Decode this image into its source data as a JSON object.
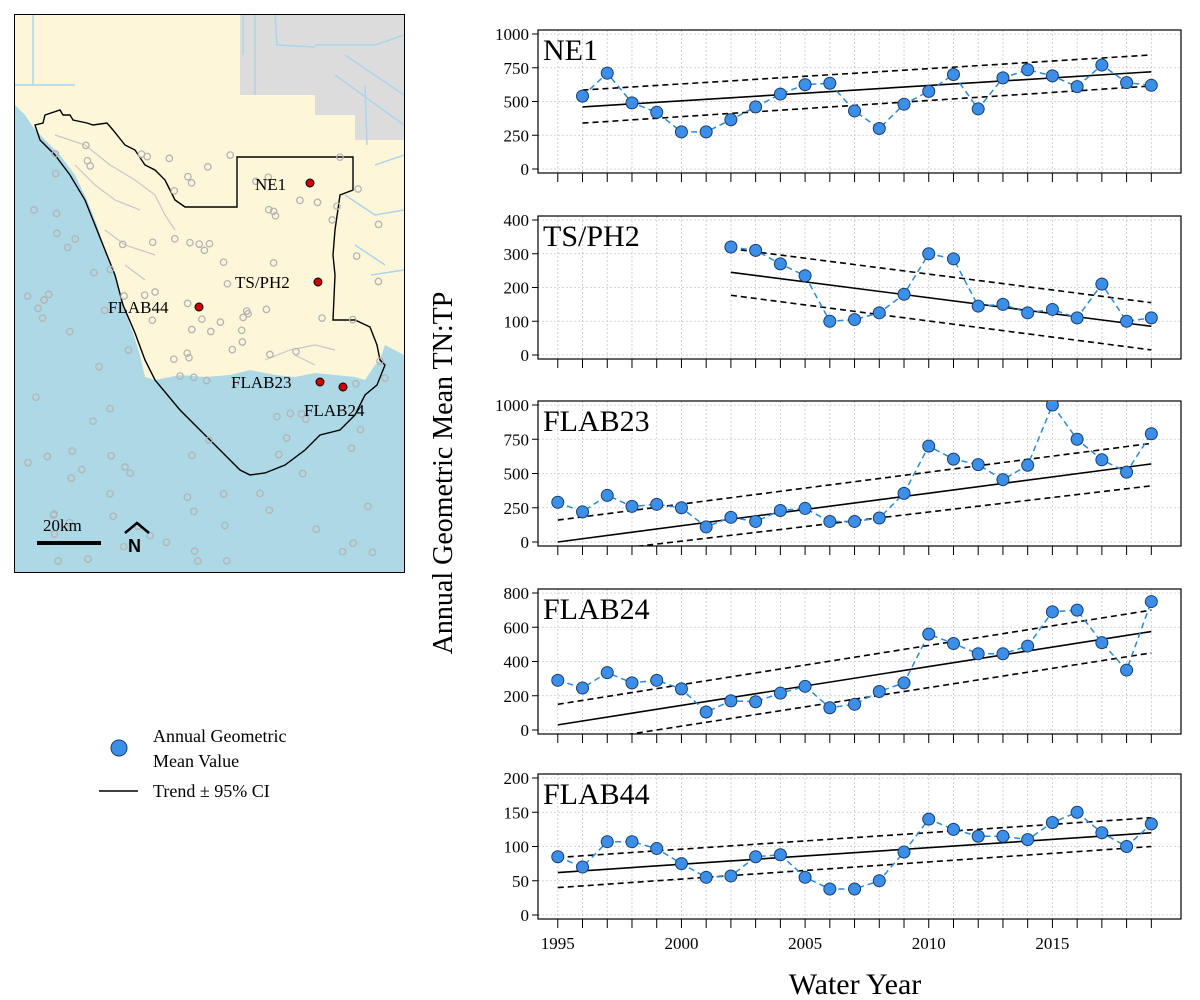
{
  "map": {
    "scale_label": "20km",
    "north_label": "N",
    "colors": {
      "water": "#add8e6",
      "land": "#fef6d9",
      "urban": "#dcdcdc",
      "site_marker": "#cc0000",
      "background_station": "#b4b4b4"
    },
    "sites": [
      {
        "label": "NE1"
      },
      {
        "label": "TS/PH2"
      },
      {
        "label": "FLAB44"
      },
      {
        "label": "FLAB23"
      },
      {
        "label": "FLAB24"
      }
    ]
  },
  "legend": {
    "point_label_line1": "Annual Geometric",
    "point_label_line2": "Mean Value",
    "trend_label": "Trend ± 95% CI"
  },
  "chart_data": [
    {
      "type": "line",
      "title": "NE1",
      "ylim": [
        0,
        1000
      ],
      "yticks": [
        0,
        250,
        500,
        750,
        1000
      ],
      "x": [
        1996,
        1997,
        1998,
        1999,
        2000,
        2001,
        2002,
        2003,
        2004,
        2005,
        2006,
        2007,
        2008,
        2009,
        2010,
        2011,
        2012,
        2013,
        2014,
        2015,
        2016,
        2017,
        2018,
        2019
      ],
      "values": [
        540,
        710,
        490,
        420,
        275,
        275,
        365,
        460,
        555,
        625,
        635,
        430,
        300,
        480,
        575,
        700,
        445,
        675,
        735,
        690,
        610,
        770,
        640,
        620
      ],
      "trend": {
        "x": [
          1996,
          2019
        ],
        "fit": [
          460,
          720
        ],
        "lower": [
          340,
          615
        ],
        "upper": [
          585,
          845
        ]
      }
    },
    {
      "type": "line",
      "title": "TS/PH2",
      "ylim": [
        0,
        400
      ],
      "yticks": [
        0,
        100,
        200,
        300,
        400
      ],
      "x": [
        2002,
        2003,
        2004,
        2005,
        2006,
        2007,
        2008,
        2009,
        2010,
        2011,
        2012,
        2013,
        2014,
        2015,
        2016,
        2017,
        2018,
        2019
      ],
      "values": [
        320,
        310,
        270,
        235,
        100,
        105,
        125,
        180,
        300,
        285,
        145,
        150,
        125,
        135,
        110,
        210,
        100,
        110
      ],
      "trend": {
        "x": [
          2002,
          2019
        ],
        "fit": [
          245,
          85
        ],
        "lower": [
          177,
          15
        ],
        "upper": [
          315,
          155
        ]
      }
    },
    {
      "type": "line",
      "title": "FLAB23",
      "ylim": [
        0,
        1000
      ],
      "yticks": [
        0,
        250,
        500,
        750,
        1000
      ],
      "x": [
        1995,
        1996,
        1997,
        1998,
        1999,
        2000,
        2001,
        2002,
        2003,
        2004,
        2005,
        2006,
        2007,
        2008,
        2009,
        2010,
        2011,
        2012,
        2013,
        2014,
        2015,
        2016,
        2017,
        2018,
        2019
      ],
      "values": [
        290,
        220,
        340,
        260,
        275,
        250,
        110,
        180,
        150,
        230,
        245,
        150,
        150,
        175,
        355,
        700,
        605,
        565,
        455,
        560,
        1000,
        750,
        600,
        510,
        790
      ],
      "trend": {
        "x": [
          1995,
          2019
        ],
        "fit": [
          0,
          570
        ],
        "lower": [
          -100,
          410
        ],
        "upper": [
          160,
          720
        ]
      }
    },
    {
      "type": "line",
      "title": "FLAB24",
      "ylim": [
        0,
        800
      ],
      "yticks": [
        0,
        200,
        400,
        600,
        800
      ],
      "x": [
        1995,
        1996,
        1997,
        1998,
        1999,
        2000,
        2001,
        2002,
        2003,
        2004,
        2005,
        2006,
        2007,
        2008,
        2009,
        2010,
        2011,
        2012,
        2013,
        2014,
        2015,
        2016,
        2017,
        2018,
        2019
      ],
      "values": [
        290,
        245,
        335,
        275,
        290,
        240,
        105,
        170,
        165,
        215,
        255,
        130,
        150,
        225,
        275,
        560,
        505,
        445,
        445,
        490,
        690,
        700,
        510,
        350,
        750
      ],
      "trend": {
        "x": [
          1995,
          2019
        ],
        "fit": [
          30,
          575
        ],
        "lower": [
          -90,
          450
        ],
        "upper": [
          150,
          700
        ]
      }
    },
    {
      "type": "line",
      "title": "FLAB44",
      "ylim": [
        0,
        200
      ],
      "yticks": [
        0,
        50,
        100,
        150,
        200
      ],
      "xlabel": "Water Year",
      "xticks": [
        1995,
        2000,
        2005,
        2010,
        2015
      ],
      "x": [
        1995,
        1996,
        1997,
        1998,
        1999,
        2000,
        2001,
        2002,
        2003,
        2004,
        2005,
        2006,
        2007,
        2008,
        2009,
        2010,
        2011,
        2012,
        2013,
        2014,
        2015,
        2016,
        2017,
        2018,
        2019
      ],
      "values": [
        85,
        70,
        107,
        107,
        97,
        75,
        55,
        57,
        85,
        88,
        55,
        38,
        38,
        50,
        92,
        140,
        125,
        115,
        115,
        110,
        135,
        150,
        120,
        100,
        133
      ],
      "trend": {
        "x": [
          1995,
          2019
        ],
        "fit": [
          62,
          120
        ],
        "lower": [
          40,
          100
        ],
        "upper": [
          84,
          142
        ]
      }
    }
  ],
  "shared": {
    "ylabel": "Annual Geometric Mean TN:TP",
    "xlim": [
      1994.2,
      2020.2
    ],
    "point_color": "#3c8fe8",
    "line_color": "#2b8ad6"
  }
}
